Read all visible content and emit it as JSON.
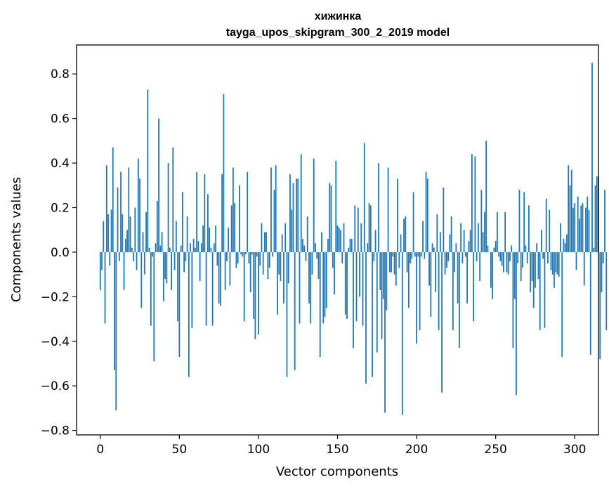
{
  "chart_data": {
    "type": "bar",
    "title": "хижинка",
    "subtitle": "tayga_upos_skipgram_300_2_2019 model",
    "xlabel": "Vector components",
    "ylabel": "Components values",
    "xlim": [
      -15,
      315
    ],
    "ylim": [
      -0.82,
      0.93
    ],
    "xticks": [
      0,
      50,
      100,
      150,
      200,
      250,
      300
    ],
    "xtick_labels": [
      "0",
      "50",
      "100",
      "150",
      "200",
      "250",
      "300"
    ],
    "yticks": [
      -0.8,
      -0.6,
      -0.4,
      -0.2,
      0.0,
      0.2,
      0.4,
      0.6,
      0.8
    ],
    "ytick_labels": [
      "−0.8",
      "−0.6",
      "−0.4",
      "−0.2",
      "0.0",
      "0.2",
      "0.4",
      "0.6",
      "0.8"
    ],
    "grid": false,
    "bar_color": "#1f77b4",
    "x_start": 0,
    "values": [
      -0.17,
      -0.08,
      0.14,
      -0.32,
      0.39,
      0.17,
      -0.06,
      0.19,
      0.47,
      -0.53,
      -0.71,
      0.29,
      -0.04,
      0.36,
      0.17,
      -0.17,
      0.06,
      0.1,
      0.38,
      0.16,
      0.02,
      -0.04,
      0.2,
      -0.08,
      0.42,
      0.33,
      -0.25,
      0.09,
      -0.1,
      0.18,
      0.73,
      0.02,
      -0.33,
      -0.02,
      -0.49,
      0.04,
      0.23,
      0.6,
      0.03,
      0.09,
      -0.22,
      -0.12,
      -0.14,
      0.4,
      0.02,
      -0.17,
      0.47,
      -0.08,
      0.14,
      -0.31,
      -0.47,
      0.03,
      0.27,
      -0.09,
      -0.04,
      0.16,
      -0.56,
      0.04,
      -0.34,
      0.06,
      0.02,
      0.36,
      0.05,
      -0.13,
      0.04,
      0.12,
      0.35,
      -0.33,
      0.26,
      0.11,
      0.02,
      -0.33,
      0.04,
      0.12,
      -0.06,
      -0.23,
      -0.24,
      0.35,
      0.71,
      -0.17,
      -0.04,
      0.11,
      -0.15,
      0.21,
      0.38,
      0.22,
      -0.07,
      -0.05,
      0.3,
      -0.01,
      -0.02,
      -0.31,
      -0.01,
      0.36,
      -0.05,
      -0.18,
      -0.01,
      -0.3,
      -0.39,
      -0.02,
      -0.37,
      -0.06,
      0.13,
      -0.1,
      0.09,
      0.09,
      -0.12,
      -0.07,
      0.38,
      -0.02,
      0.28,
      0.39,
      -0.28,
      -0.1,
      -0.13,
      0.08,
      -0.23,
      0.13,
      -0.56,
      -0.14,
      0.35,
      0.19,
      0.31,
      -0.53,
      0.33,
      0.33,
      -0.32,
      0.44,
      0.06,
      0.03,
      -0.04,
      0.16,
      -0.23,
      -0.32,
      -0.1,
      0.42,
      0.04,
      -0.03,
      -0.12,
      -0.47,
      0.09,
      -0.32,
      -0.29,
      -0.25,
      0.06,
      0.31,
      0.3,
      -0.07,
      -0.19,
      0.41,
      0.12,
      0.11,
      0.1,
      -0.05,
      0.13,
      -0.28,
      -0.3,
      0.02,
      0.06,
      0.06,
      -0.43,
      0.21,
      -0.31,
      0.2,
      -0.2,
      0.13,
      -0.33,
      0.49,
      -0.59,
      0.04,
      0.22,
      0.21,
      -0.56,
      -0.04,
      0.1,
      -0.45,
      0.4,
      -0.17,
      -0.39,
      -0.21,
      -0.72,
      -0.26,
      0.38,
      -0.09,
      -0.09,
      -0.02,
      -0.1,
      -0.15,
      0.33,
      -0.07,
      0.08,
      -0.73,
      0.15,
      0.16,
      -0.09,
      -0.25,
      -0.05,
      -0.03,
      0.27,
      -0.02,
      -0.41,
      -0.02,
      -0.35,
      -0.02,
      0.14,
      -0.03,
      0.36,
      0.33,
      -0.15,
      -0.29,
      0.04,
      0.02,
      -0.18,
      0.17,
      -0.35,
      0.09,
      -0.63,
      0.29,
      -0.1,
      -0.07,
      -0.04,
      0.08,
      0.16,
      -0.35,
      -0.09,
      0.04,
      -0.23,
      -0.43,
      0.13,
      -0.05,
      0.1,
      -0.02,
      -0.23,
      0.05,
      0.1,
      0.44,
      -0.31,
      0.43,
      -0.04,
      0.13,
      -0.13,
      0.28,
      0.09,
      0.18,
      0.5,
      0.03,
      0.0,
      -0.16,
      -0.21,
      0.02,
      0.05,
      0.18,
      -0.02,
      -0.04,
      -0.06,
      -0.09,
      0.18,
      -0.09,
      -0.1,
      -0.04,
      0.03,
      -0.43,
      -0.21,
      -0.64,
      -0.05,
      0.28,
      -0.13,
      -0.07,
      0.27,
      0.03,
      -0.05,
      0.21,
      -0.18,
      -0.13,
      -0.25,
      -0.16,
      0.04,
      -0.12,
      -0.35,
      0.1,
      -0.03,
      -0.34,
      0.24,
      -0.05,
      0.19,
      -0.08,
      -0.1,
      -0.16,
      -0.09,
      -0.1,
      -0.11,
      0.13,
      -0.47,
      0.06,
      0.04,
      0.08,
      0.39,
      0.3,
      0.37,
      0.2,
      0.22,
      -0.08,
      0.25,
      0.15,
      0.21,
      0.22,
      -0.15,
      0.2,
      0.25,
      0.19,
      -0.46,
      0.85,
      0.02,
      0.3,
      0.34,
      0.34,
      -0.48,
      -0.18,
      -0.05,
      0.28,
      -0.35
    ]
  }
}
